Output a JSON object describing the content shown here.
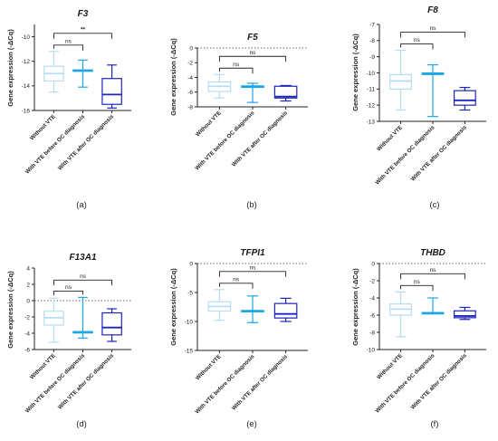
{
  "figure": {
    "categories": [
      "Without VTE",
      "With VTE before OC diagnosis",
      "With VTE after OC diagnosis"
    ],
    "ylabel": "Gene expression (-ΔCq)",
    "colors": [
      "#b7dcf3",
      "#1aa6e6",
      "#1d24b8"
    ]
  },
  "chart_data": [
    {
      "type": "box",
      "title": "F3",
      "panel_label": "(a)",
      "ylabel": "Gene expression (-ΔCq)",
      "categories": [
        "Without VTE",
        "With VTE before OC diagnosis",
        "With VTE after OC diagnosis"
      ],
      "ylim": [
        -16,
        -9
      ],
      "yticks": [
        -16,
        -14,
        -12,
        -10
      ],
      "zero_line": false,
      "series": [
        {
          "min": -14.5,
          "q1": -13.6,
          "median": -13.0,
          "q3": -12.4,
          "max": -11.2
        },
        {
          "min": -14.1,
          "q1": -12.8,
          "median": -12.75,
          "q3": -12.7,
          "max": -11.9
        },
        {
          "min": -15.8,
          "q1": -15.5,
          "median": -14.7,
          "q3": -13.4,
          "max": -12.3
        }
      ],
      "comparisons": [
        {
          "from": 0,
          "to": 1,
          "label": "ns"
        },
        {
          "from": 0,
          "to": 2,
          "label": "**"
        }
      ]
    },
    {
      "type": "box",
      "title": "F5",
      "panel_label": "(b)",
      "ylabel": "Gene expression (-ΔCq)",
      "categories": [
        "Without VTE",
        "With VTE before OC diagnosis",
        "With VTE after OC diagnosis"
      ],
      "ylim": [
        -8,
        0
      ],
      "yticks": [
        -8,
        -6,
        -4,
        -2,
        0
      ],
      "zero_line": true,
      "series": [
        {
          "min": -6.8,
          "q1": -5.9,
          "median": -5.2,
          "q3": -4.6,
          "max": -3.6
        },
        {
          "min": -7.4,
          "q1": -5.35,
          "median": -5.25,
          "q3": -5.15,
          "max": -4.8
        },
        {
          "min": -7.2,
          "q1": -6.8,
          "median": -6.6,
          "q3": -5.2,
          "max": -5.1
        }
      ],
      "comparisons": [
        {
          "from": 0,
          "to": 1,
          "label": "ns"
        },
        {
          "from": 0,
          "to": 2,
          "label": "ns"
        }
      ]
    },
    {
      "type": "box",
      "title": "F8",
      "panel_label": "(c)",
      "ylabel": "Gene expression (-ΔCq)",
      "categories": [
        "Without VTE",
        "With VTE before OC diagnosis",
        "With VTE after OC diagnosis"
      ],
      "ylim": [
        -13,
        -7
      ],
      "yticks": [
        -13,
        -12,
        -11,
        -10,
        -9,
        -8,
        -7
      ],
      "zero_line": false,
      "series": [
        {
          "min": -12.3,
          "q1": -11.0,
          "median": -10.5,
          "q3": -10.1,
          "max": -8.6
        },
        {
          "min": -12.7,
          "q1": -10.1,
          "median": -10.05,
          "q3": -10.0,
          "max": -9.5
        },
        {
          "min": -12.3,
          "q1": -12.0,
          "median": -11.7,
          "q3": -11.1,
          "max": -10.9
        }
      ],
      "comparisons": [
        {
          "from": 0,
          "to": 1,
          "label": "ns"
        },
        {
          "from": 0,
          "to": 2,
          "label": "ns"
        }
      ]
    },
    {
      "type": "box",
      "title": "F13A1",
      "panel_label": "(d)",
      "ylabel": "Gene expression (-ΔCq)",
      "categories": [
        "Without VTE",
        "With VTE before OC diagnosis",
        "With VTE after OC diagnosis"
      ],
      "ylim": [
        -6,
        4
      ],
      "yticks": [
        -6,
        -4,
        -2,
        0,
        2,
        4
      ],
      "zero_line": true,
      "series": [
        {
          "min": -5.1,
          "q1": -3.0,
          "median": -2.1,
          "q3": -1.3,
          "max": 0.3
        },
        {
          "min": -4.6,
          "q1": -3.9,
          "median": -3.85,
          "q3": -3.8,
          "max": 0.4
        },
        {
          "min": -5.0,
          "q1": -4.2,
          "median": -3.3,
          "q3": -1.5,
          "max": -1.0
        }
      ],
      "comparisons": [
        {
          "from": 0,
          "to": 1,
          "label": "ns"
        },
        {
          "from": 0,
          "to": 2,
          "label": "ns"
        }
      ]
    },
    {
      "type": "box",
      "title": "TFPI1",
      "panel_label": "(e)",
      "ylabel": "Gene expression (-ΔCq)",
      "categories": [
        "Without VTE",
        "With VTE before OC diagnosis",
        "With VTE after OC diagnosis"
      ],
      "ylim": [
        -15,
        0
      ],
      "yticks": [
        -15,
        -10,
        -5,
        0
      ],
      "zero_line": true,
      "series": [
        {
          "min": -9.8,
          "q1": -8.2,
          "median": -7.4,
          "q3": -6.6,
          "max": -4.5
        },
        {
          "min": -10.2,
          "q1": -8.3,
          "median": -8.2,
          "q3": -8.1,
          "max": -5.6
        },
        {
          "min": -10.0,
          "q1": -9.4,
          "median": -8.7,
          "q3": -6.9,
          "max": -6.0
        }
      ],
      "comparisons": [
        {
          "from": 0,
          "to": 1,
          "label": "ns"
        },
        {
          "from": 0,
          "to": 2,
          "label": "ns"
        }
      ]
    },
    {
      "type": "box",
      "title": "THBD",
      "panel_label": "(f)",
      "ylabel": "Gene expression (-ΔCq)",
      "categories": [
        "Without VTE",
        "With VTE before OC diagnosis",
        "With VTE after OC diagnosis"
      ],
      "ylim": [
        -10,
        0
      ],
      "yticks": [
        -10,
        -8,
        -6,
        -4,
        -2,
        0
      ],
      "zero_line": true,
      "series": [
        {
          "min": -8.5,
          "q1": -6.0,
          "median": -5.3,
          "q3": -4.7,
          "max": -3.3
        },
        {
          "min": -5.8,
          "q1": -5.8,
          "median": -5.75,
          "q3": -5.7,
          "max": -4.0
        },
        {
          "min": -6.5,
          "q1": -6.3,
          "median": -6.1,
          "q3": -5.5,
          "max": -5.1
        }
      ],
      "comparisons": [
        {
          "from": 0,
          "to": 1,
          "label": "ns"
        },
        {
          "from": 0,
          "to": 2,
          "label": "ns"
        }
      ]
    }
  ]
}
